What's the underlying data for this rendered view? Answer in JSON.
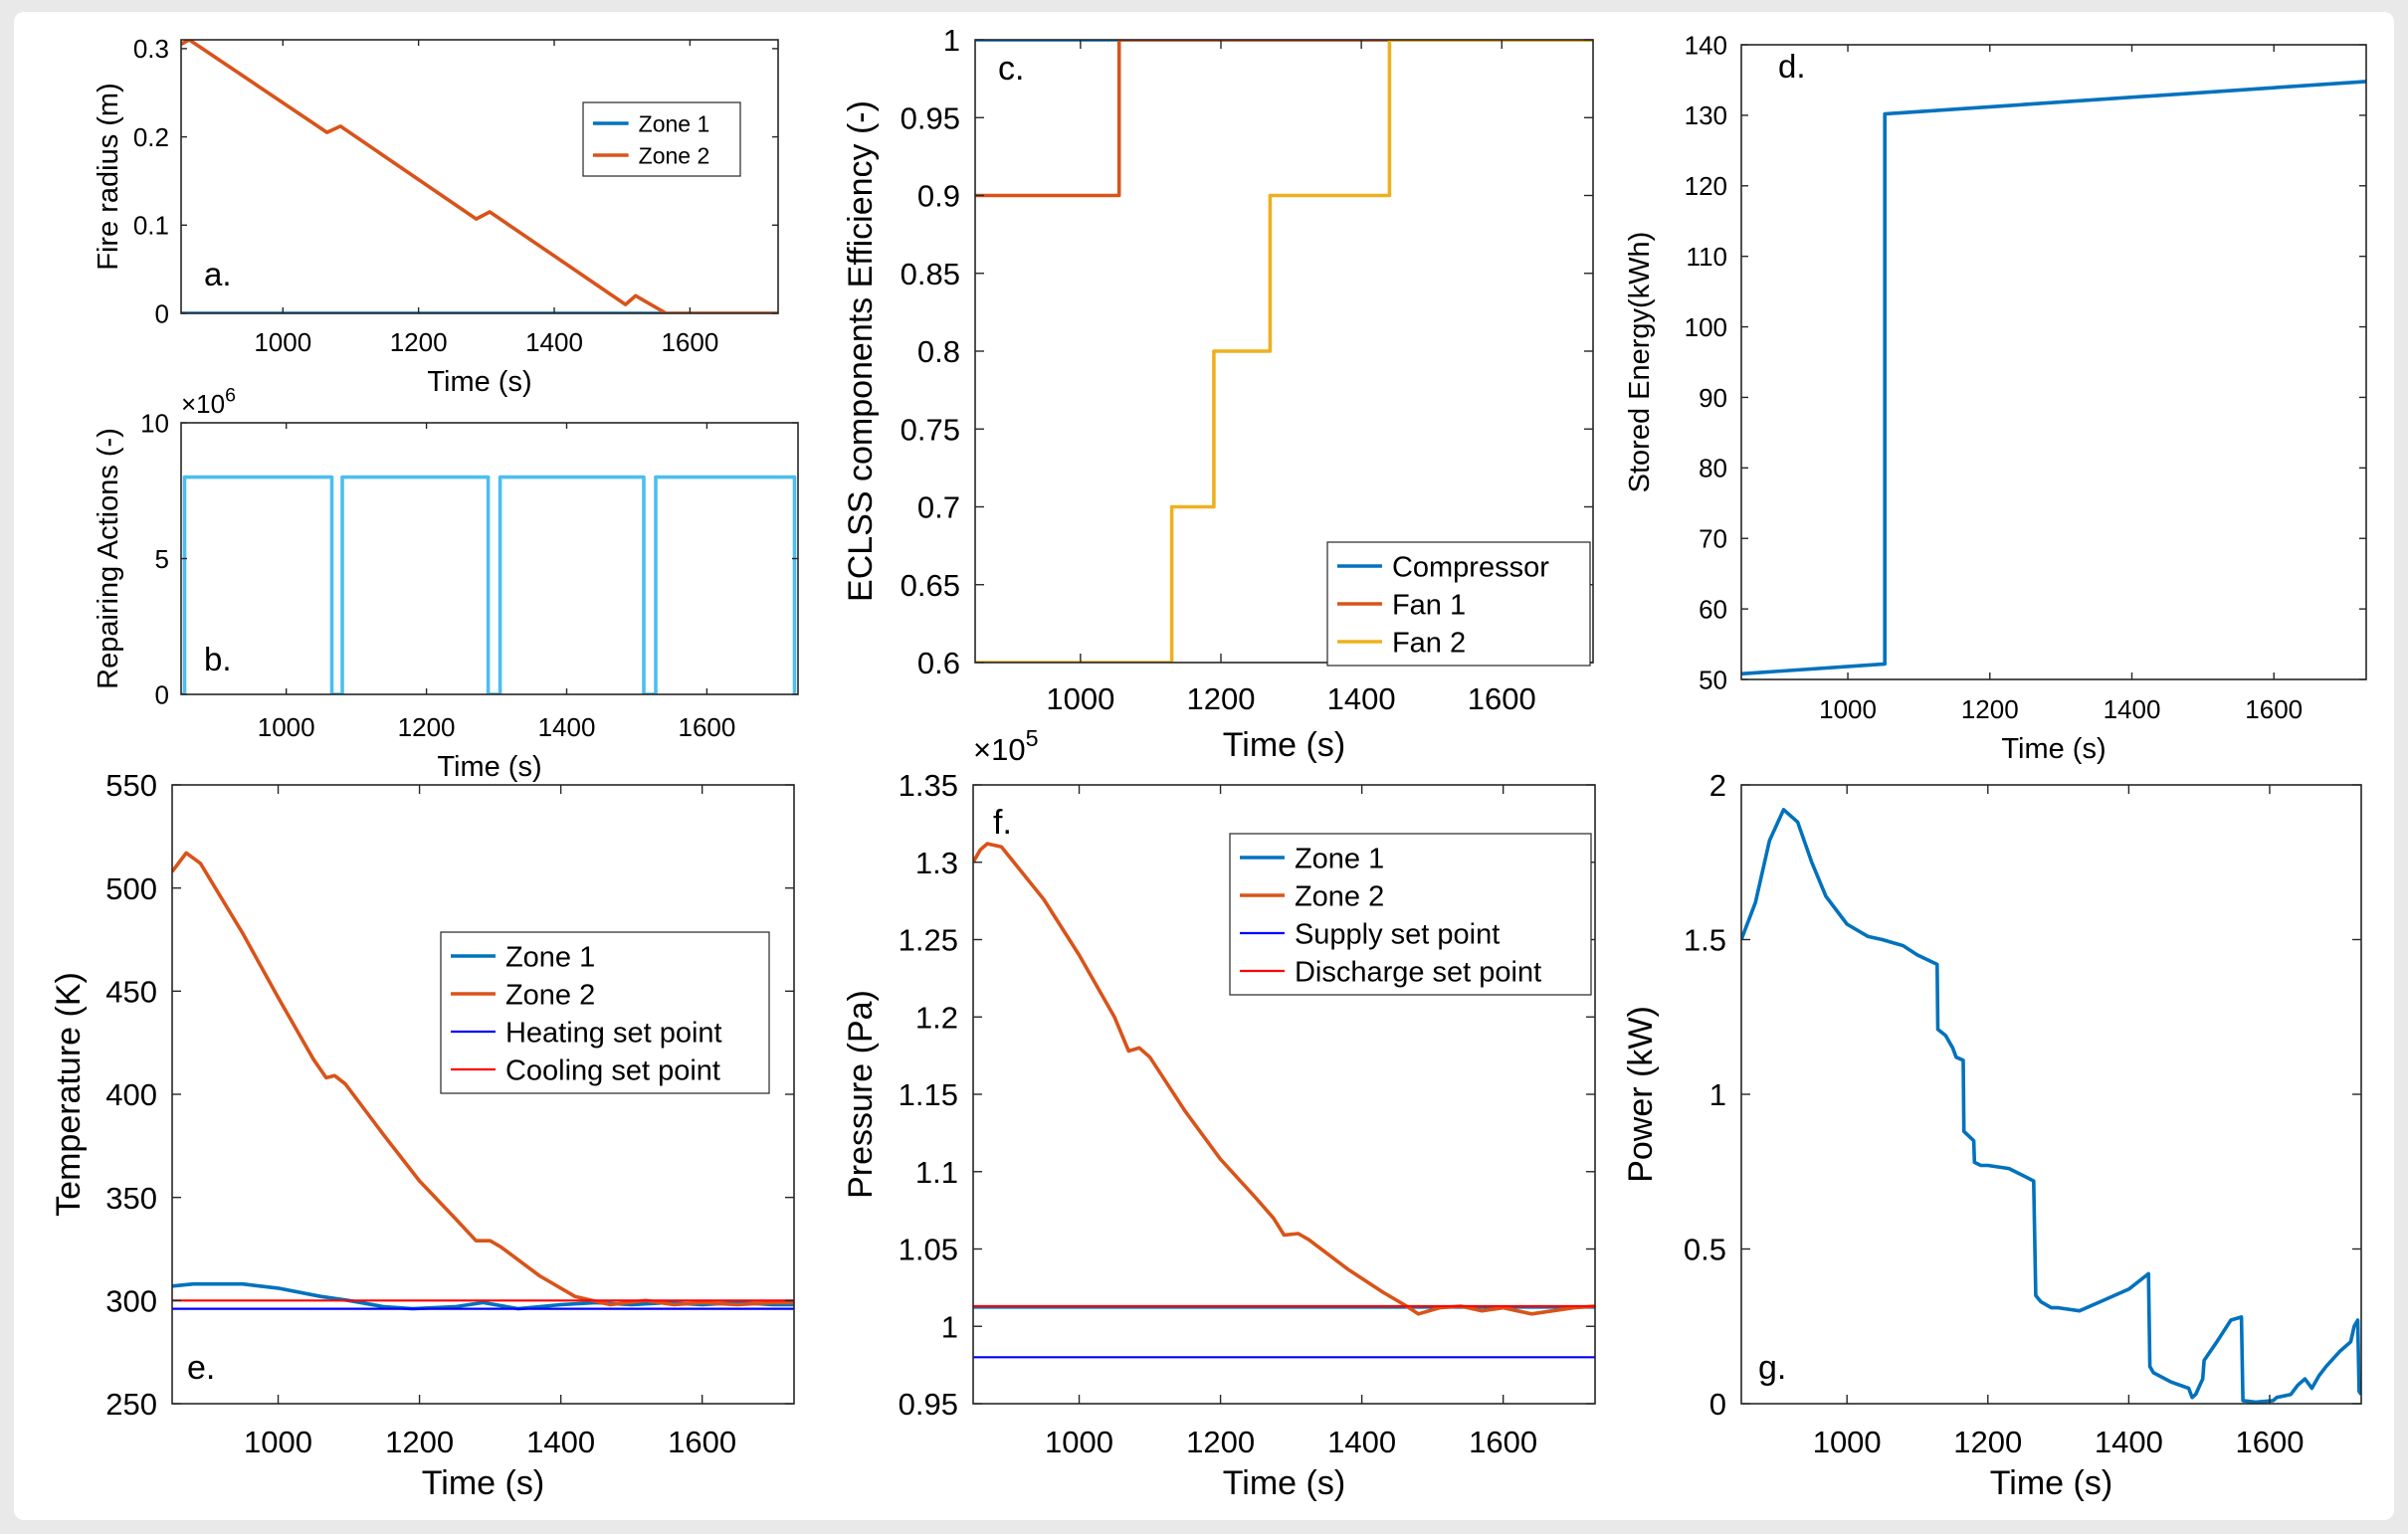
{
  "chart_data": [
    {
      "id": "a",
      "type": "line",
      "panel_label": "a.",
      "xlabel": "Time (s)",
      "ylabel": "Fire radius (m)",
      "xlim": [
        850,
        1730
      ],
      "ylim": [
        0,
        0.31
      ],
      "xticks": [
        1000,
        1200,
        1400,
        1600
      ],
      "yticks": [
        0,
        0.1,
        0.2,
        0.3
      ],
      "ytick_labels": [
        "0",
        "0.1",
        "0.2",
        "0.3"
      ],
      "legend": "top-right",
      "series": [
        {
          "name": "Zone 1",
          "color": "#0072BD",
          "x": [
            850,
            1730
          ],
          "y": [
            0,
            0
          ]
        },
        {
          "name": "Zone 2",
          "color": "#D95319",
          "x": [
            850,
            862,
            1065,
            1085,
            1285,
            1305,
            1505,
            1520,
            1565,
            1730
          ],
          "y": [
            0.305,
            0.31,
            0.205,
            0.212,
            0.107,
            0.115,
            0.01,
            0.02,
            0,
            0
          ]
        }
      ]
    },
    {
      "id": "b",
      "type": "line",
      "panel_label": "b.",
      "xlabel": "Time (s)",
      "ylabel": "Repairing Actions (-)",
      "exponent_label": "×10",
      "exponent_power": "6",
      "xlim": [
        850,
        1730
      ],
      "ylim": [
        0,
        10000000
      ],
      "xticks": [
        1000,
        1200,
        1400,
        1600
      ],
      "yticks": [
        0,
        5000000,
        10000000
      ],
      "ytick_labels": [
        "0",
        "5",
        "10"
      ],
      "series": [
        {
          "name": "Repairing actions",
          "color": "#4DBEEE",
          "x": [
            850,
            855,
            855,
            1065,
            1065,
            1080,
            1080,
            1288,
            1288,
            1305,
            1305,
            1510,
            1510,
            1527,
            1527,
            1725,
            1725
          ],
          "y": [
            0,
            0,
            8000000,
            8000000,
            0,
            0,
            8000000,
            8000000,
            0,
            0,
            8000000,
            8000000,
            0,
            0,
            8000000,
            8000000,
            0
          ]
        }
      ]
    },
    {
      "id": "c",
      "type": "line",
      "panel_label": "c.",
      "xlabel": "Time (s)",
      "ylabel": "ECLSS components Efficiency (-)",
      "xlim": [
        850,
        1730
      ],
      "ylim": [
        0.6,
        1
      ],
      "xticks": [
        1000,
        1200,
        1400,
        1600
      ],
      "yticks": [
        0.6,
        0.65,
        0.7,
        0.75,
        0.8,
        0.85,
        0.9,
        0.95,
        1
      ],
      "ytick_labels": [
        "0.6",
        "0.65",
        "0.7",
        "0.75",
        "0.8",
        "0.85",
        "0.9",
        "0.95",
        "1"
      ],
      "legend": "bottom-right",
      "series": [
        {
          "name": "Compressor",
          "color": "#0072BD",
          "x": [
            850,
            1730
          ],
          "y": [
            1,
            1
          ]
        },
        {
          "name": "Fan 1",
          "color": "#D95319",
          "x": [
            850,
            1055,
            1055,
            1730
          ],
          "y": [
            0.9,
            0.9,
            1,
            1
          ]
        },
        {
          "name": "Fan 2",
          "color": "#EDB120",
          "x": [
            850,
            1130,
            1130,
            1190,
            1190,
            1270,
            1270,
            1440,
            1440,
            1730
          ],
          "y": [
            0.6,
            0.6,
            0.7,
            0.7,
            0.8,
            0.8,
            0.9,
            0.9,
            1,
            1
          ]
        }
      ]
    },
    {
      "id": "d",
      "type": "line",
      "panel_label": "d.",
      "xlabel": "Time (s)",
      "ylabel": "Stored Energy(kWh)",
      "xlim": [
        850,
        1730
      ],
      "ylim": [
        50,
        140
      ],
      "xticks": [
        1000,
        1200,
        1400,
        1600
      ],
      "yticks": [
        50,
        60,
        70,
        80,
        90,
        100,
        110,
        120,
        130,
        140
      ],
      "ytick_labels": [
        "50",
        "60",
        "70",
        "80",
        "90",
        "100",
        "110",
        "120",
        "130",
        "140"
      ],
      "series": [
        {
          "name": "Stored energy",
          "color": "#0072BD",
          "x": [
            850,
            1052,
            1052,
            1730
          ],
          "y": [
            50.8,
            52.2,
            130.2,
            134.8
          ]
        }
      ]
    },
    {
      "id": "e",
      "type": "line",
      "panel_label": "e.",
      "xlabel": "Time (s)",
      "ylabel": "Temperature (K)",
      "xlim": [
        850,
        1730
      ],
      "ylim": [
        250,
        550
      ],
      "xticks": [
        1000,
        1200,
        1400,
        1600
      ],
      "yticks": [
        250,
        300,
        350,
        400,
        450,
        500,
        550
      ],
      "ytick_labels": [
        "250",
        "300",
        "350",
        "400",
        "450",
        "500",
        "550"
      ],
      "legend": "center-right",
      "series": [
        {
          "name": "Zone 1",
          "color": "#0072BD",
          "x": [
            850,
            880,
            950,
            1000,
            1060,
            1100,
            1150,
            1190,
            1250,
            1290,
            1340,
            1400,
            1450,
            1500,
            1550,
            1600,
            1650,
            1700,
            1730
          ],
          "y": [
            307,
            308,
            308,
            306,
            302,
            300,
            297,
            296,
            297,
            299,
            296,
            298,
            299,
            298,
            299,
            298,
            299,
            298,
            298
          ]
        },
        {
          "name": "Zone 2",
          "color": "#D95319",
          "x": [
            850,
            870,
            890,
            950,
            1000,
            1050,
            1068,
            1080,
            1095,
            1150,
            1200,
            1250,
            1280,
            1300,
            1315,
            1370,
            1420,
            1470,
            1520,
            1560,
            1600,
            1650,
            1700,
            1730
          ],
          "y": [
            508,
            517,
            512,
            478,
            447,
            417,
            408,
            409,
            405,
            380,
            358,
            340,
            329,
            329,
            326,
            312,
            302,
            298,
            300,
            298,
            299,
            298,
            299,
            299
          ]
        },
        {
          "name": "Heating set point",
          "color": "#0000FF",
          "x": [
            850,
            1730
          ],
          "y": [
            296,
            296
          ]
        },
        {
          "name": "Cooling set point",
          "color": "#FF0000",
          "x": [
            850,
            1730
          ],
          "y": [
            300,
            300
          ]
        }
      ]
    },
    {
      "id": "f",
      "type": "line",
      "panel_label": "f.",
      "xlabel": "Time (s)",
      "ylabel": "Pressure (Pa)",
      "exponent_label": "×10",
      "exponent_power": "5",
      "xlim": [
        850,
        1730
      ],
      "ylim": [
        95000,
        135000
      ],
      "xticks": [
        1000,
        1200,
        1400,
        1600
      ],
      "yticks": [
        95000,
        100000,
        105000,
        110000,
        115000,
        120000,
        125000,
        130000,
        135000
      ],
      "ytick_labels": [
        "0.95",
        "1",
        "1.05",
        "1.1",
        "1.15",
        "1.2",
        "1.25",
        "1.3",
        "1.35"
      ],
      "legend": "top-right",
      "series": [
        {
          "name": "Zone 1",
          "color": "#0072BD",
          "x": [
            850,
            1730
          ],
          "y": [
            101250,
            101250
          ]
        },
        {
          "name": "Zone 2",
          "color": "#D95319",
          "x": [
            850,
            860,
            870,
            890,
            950,
            1000,
            1050,
            1070,
            1085,
            1100,
            1150,
            1200,
            1250,
            1275,
            1290,
            1310,
            1325,
            1380,
            1430,
            1460,
            1480,
            1510,
            1540,
            1570,
            1600,
            1640,
            1670,
            1700,
            1730
          ],
          "y": [
            130000,
            130800,
            131200,
            131000,
            127600,
            124000,
            120000,
            117800,
            118000,
            117400,
            113900,
            110800,
            108300,
            107000,
            105900,
            106000,
            105600,
            103700,
            102200,
            101400,
            100800,
            101200,
            101300,
            101000,
            101200,
            100800,
            101000,
            101200,
            101300
          ]
        },
        {
          "name": "Supply set point",
          "color": "#0000FF",
          "x": [
            850,
            1730
          ],
          "y": [
            98000,
            98000
          ]
        },
        {
          "name": "Discharge set point",
          "color": "#FF0000",
          "x": [
            850,
            1730
          ],
          "y": [
            101300,
            101300
          ]
        }
      ]
    },
    {
      "id": "g",
      "type": "line",
      "panel_label": "g.",
      "xlabel": "Time (s)",
      "ylabel": "Power (kW)",
      "xlim": [
        850,
        1730
      ],
      "ylim": [
        0,
        2
      ],
      "xticks": [
        1000,
        1200,
        1400,
        1600
      ],
      "yticks": [
        0,
        0.5,
        1,
        1.5,
        2
      ],
      "ytick_labels": [
        "0",
        "0.5",
        "1",
        "1.5",
        "2"
      ],
      "series": [
        {
          "name": "Power",
          "color": "#0072BD",
          "x": [
            850,
            870,
            890,
            910,
            930,
            950,
            970,
            1000,
            1030,
            1050,
            1080,
            1100,
            1128,
            1129,
            1140,
            1150,
            1155,
            1165,
            1166,
            1180,
            1181,
            1190,
            1200,
            1230,
            1265,
            1268,
            1275,
            1290,
            1300,
            1330,
            1360,
            1400,
            1428,
            1430,
            1435,
            1460,
            1485,
            1490,
            1495,
            1505,
            1507,
            1525,
            1545,
            1560,
            1562,
            1580,
            1605,
            1610,
            1630,
            1640,
            1650,
            1660,
            1670,
            1680,
            1700,
            1715,
            1720,
            1725,
            1727,
            1730
          ],
          "y": [
            1.5,
            1.62,
            1.82,
            1.92,
            1.88,
            1.75,
            1.64,
            1.55,
            1.51,
            1.5,
            1.48,
            1.45,
            1.42,
            1.21,
            1.19,
            1.15,
            1.12,
            1.11,
            0.88,
            0.85,
            0.78,
            0.77,
            0.77,
            0.76,
            0.72,
            0.35,
            0.33,
            0.31,
            0.31,
            0.3,
            0.33,
            0.37,
            0.42,
            0.12,
            0.1,
            0.07,
            0.05,
            0.02,
            0.03,
            0.08,
            0.14,
            0.2,
            0.27,
            0.28,
            0.01,
            0.005,
            0.01,
            0.02,
            0.03,
            0.06,
            0.08,
            0.05,
            0.09,
            0.12,
            0.17,
            0.2,
            0.25,
            0.27,
            0.04,
            0.03
          ]
        }
      ]
    }
  ]
}
